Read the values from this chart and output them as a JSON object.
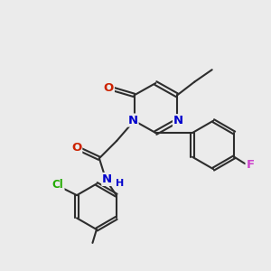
{
  "background_color": "#ebebeb",
  "bond_color": "#2d2d2d",
  "bond_width": 1.5,
  "atom_colors": {
    "N": "#0000cc",
    "O": "#cc2200",
    "Cl": "#22aa00",
    "F": "#cc44cc",
    "C": "#2d2d2d"
  },
  "font_size": 8.5,
  "figsize": [
    3.0,
    3.0
  ],
  "dpi": 100
}
